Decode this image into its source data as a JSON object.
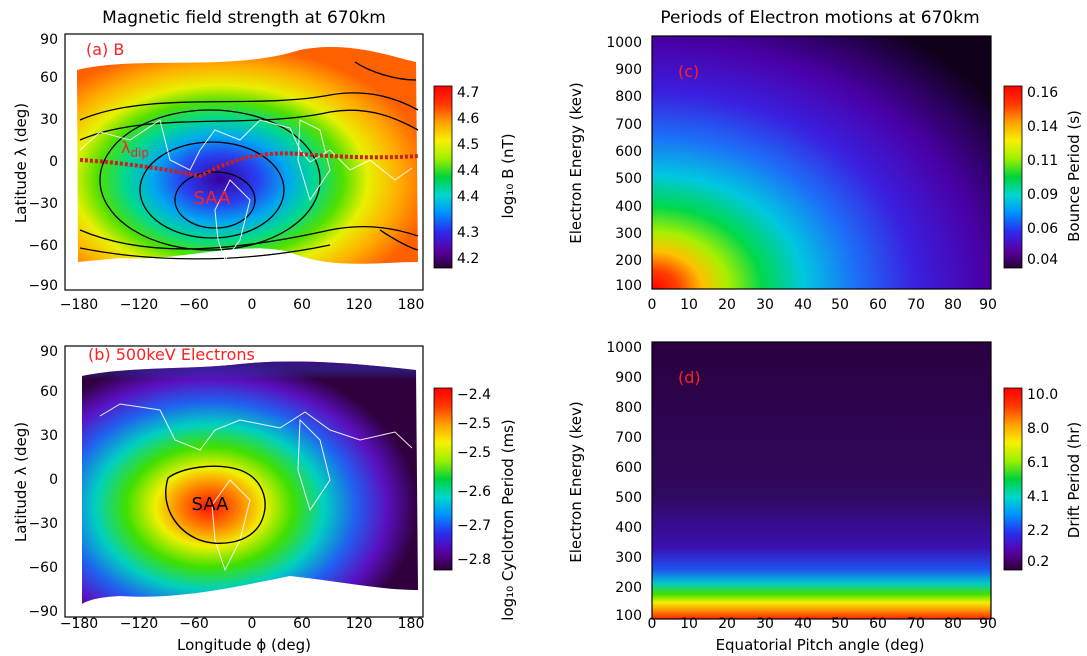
{
  "colors": {
    "rainbow": [
      "#2b0036",
      "#5a00a8",
      "#2a2cf0",
      "#0090ff",
      "#00d8d0",
      "#00d23c",
      "#9cf000",
      "#f8f000",
      "#ffa000",
      "#ff3800",
      "#ff0000"
    ],
    "label_red": "#ff2020",
    "coastline": "#ffffff",
    "dip_equator": "#cc1f1f"
  },
  "chart_data": [
    {
      "panel": "a",
      "type": "heatmap",
      "title": "Magnetic field strength at 670km",
      "panel_label": "(a) B",
      "ylabel": "Latitude λ (deg)",
      "xticks": [
        "−180",
        "−120",
        "−60",
        "0",
        "60",
        "120",
        "180"
      ],
      "yticks": [
        "90",
        "60",
        "30",
        "0",
        "−30",
        "−60",
        "−90"
      ],
      "xlim": [
        -180,
        180
      ],
      "ylim": [
        -90,
        90
      ],
      "colorbar": {
        "label": "log₁₀ B (nT)",
        "ticks": [
          "4.7",
          "4.6",
          "4.5",
          "4.4",
          "4.4",
          "4.3",
          "4.2"
        ],
        "range": [
          4.2,
          4.7
        ]
      },
      "annotations": {
        "dip": "λ",
        "dip_sub": "dip",
        "saa": "SAA"
      },
      "contours": true
    },
    {
      "panel": "b",
      "type": "heatmap",
      "panel_label": "(b) 500keV Electrons",
      "xlabel": "Longitude ϕ (deg)",
      "ylabel": "Latitude λ (deg)",
      "xticks": [
        "−180",
        "−120",
        "−60",
        "0",
        "60",
        "120",
        "180"
      ],
      "yticks": [
        "90",
        "60",
        "30",
        "0",
        "−30",
        "−60",
        "−90"
      ],
      "xlim": [
        -180,
        180
      ],
      "ylim": [
        -90,
        90
      ],
      "colorbar": {
        "label": "log₁₀ Cyclotron Period (ms)",
        "ticks": [
          "−2.4",
          "−2.5",
          "−2.5",
          "−2.6",
          "−2.7",
          "−2.8"
        ],
        "range": [
          -2.8,
          -2.4
        ]
      },
      "annotations": {
        "saa": "SAA"
      }
    },
    {
      "panel": "c",
      "type": "heatmap",
      "title": "Periods of Electron motions at 670km",
      "panel_label": "(c)",
      "ylabel": "Electron Energy (kev)",
      "xticks": [
        "0",
        "10",
        "20",
        "30",
        "40",
        "50",
        "60",
        "70",
        "80",
        "90"
      ],
      "yticks": [
        "1000",
        "900",
        "800",
        "700",
        "600",
        "500",
        "400",
        "300",
        "200",
        "100"
      ],
      "xlim": [
        0,
        90
      ],
      "ylim": [
        100,
        1000
      ],
      "colorbar": {
        "label": "Bounce Period (s)",
        "ticks": [
          "0.16",
          "0.14",
          "0.11",
          "0.09",
          "0.06",
          "0.04"
        ],
        "range": [
          0.04,
          0.16
        ]
      }
    },
    {
      "panel": "d",
      "type": "heatmap",
      "panel_label": "(d)",
      "xlabel": "Equatorial Pitch angle (deg)",
      "ylabel": "Electron Energy (kev)",
      "xticks": [
        "0",
        "10",
        "20",
        "30",
        "40",
        "50",
        "60",
        "70",
        "80",
        "90"
      ],
      "yticks": [
        "1000",
        "900",
        "800",
        "700",
        "600",
        "500",
        "400",
        "300",
        "200",
        "100"
      ],
      "xlim": [
        0,
        90
      ],
      "ylim": [
        100,
        1000
      ],
      "colorbar": {
        "label": "Drift Period (hr)",
        "ticks": [
          "10.0",
          "8.0",
          "6.1",
          "4.1",
          "2.2",
          "0.2"
        ],
        "range": [
          0.2,
          10.0
        ]
      }
    }
  ]
}
